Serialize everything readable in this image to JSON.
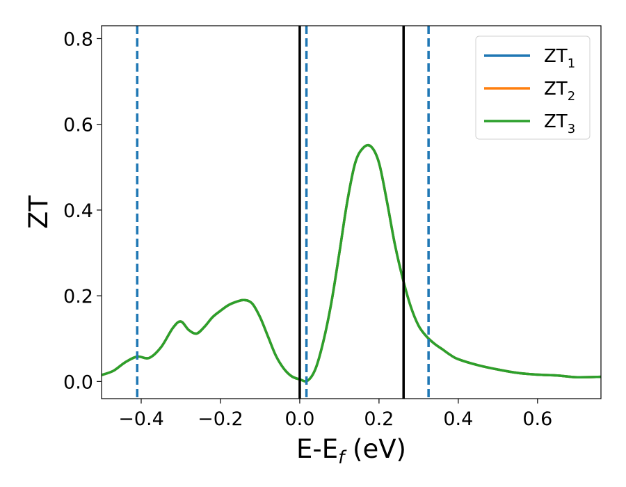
{
  "chart_data": {
    "type": "line",
    "xlabel": "E-E",
    "xlabel_sub": "f",
    "xlabel_unit": " (eV)",
    "ylabel": "ZT",
    "xlim": [
      -0.5,
      0.76
    ],
    "ylim": [
      -0.04,
      0.83
    ],
    "grid": false,
    "legend_position": "top-right",
    "xticks": [
      {
        "value": -0.4,
        "label": "−0.4"
      },
      {
        "value": -0.2,
        "label": "−0.2"
      },
      {
        "value": 0.0,
        "label": "0.0"
      },
      {
        "value": 0.2,
        "label": "0.2"
      },
      {
        "value": 0.4,
        "label": "0.4"
      },
      {
        "value": 0.6,
        "label": "0.6"
      }
    ],
    "yticks": [
      {
        "value": 0.0,
        "label": "0.0"
      },
      {
        "value": 0.2,
        "label": "0.2"
      },
      {
        "value": 0.4,
        "label": "0.4"
      },
      {
        "value": 0.6,
        "label": "0.6"
      },
      {
        "value": 0.8,
        "label": "0.8"
      }
    ],
    "x": [
      -0.5,
      -0.47,
      -0.44,
      -0.41,
      -0.38,
      -0.35,
      -0.32,
      -0.3,
      -0.28,
      -0.26,
      -0.24,
      -0.22,
      -0.2,
      -0.18,
      -0.16,
      -0.14,
      -0.12,
      -0.1,
      -0.08,
      -0.06,
      -0.04,
      -0.02,
      0.0,
      0.02,
      0.04,
      0.06,
      0.08,
      0.1,
      0.12,
      0.14,
      0.16,
      0.18,
      0.2,
      0.22,
      0.24,
      0.26,
      0.28,
      0.3,
      0.32,
      0.34,
      0.36,
      0.38,
      0.4,
      0.45,
      0.5,
      0.55,
      0.6,
      0.65,
      0.7,
      0.76
    ],
    "series": [
      {
        "name": "ZT",
        "name_sub": "1",
        "color": "#1f77b4",
        "values": [
          0.015,
          0.025,
          0.045,
          0.058,
          0.055,
          0.08,
          0.125,
          0.14,
          0.12,
          0.112,
          0.128,
          0.15,
          0.165,
          0.178,
          0.186,
          0.19,
          0.182,
          0.15,
          0.105,
          0.06,
          0.03,
          0.012,
          0.005,
          0.002,
          0.03,
          0.095,
          0.185,
          0.3,
          0.42,
          0.51,
          0.545,
          0.548,
          0.51,
          0.42,
          0.32,
          0.24,
          0.175,
          0.13,
          0.105,
          0.088,
          0.075,
          0.062,
          0.052,
          0.038,
          0.028,
          0.02,
          0.016,
          0.014,
          0.01,
          0.011
        ]
      },
      {
        "name": "ZT",
        "name_sub": "2",
        "color": "#ff7f0e",
        "values": [
          0.015,
          0.025,
          0.045,
          0.058,
          0.055,
          0.08,
          0.125,
          0.14,
          0.12,
          0.112,
          0.128,
          0.15,
          0.165,
          0.178,
          0.186,
          0.19,
          0.182,
          0.15,
          0.105,
          0.06,
          0.03,
          0.012,
          0.005,
          0.002,
          0.03,
          0.095,
          0.185,
          0.3,
          0.42,
          0.51,
          0.545,
          0.548,
          0.51,
          0.42,
          0.32,
          0.24,
          0.175,
          0.13,
          0.105,
          0.088,
          0.075,
          0.062,
          0.052,
          0.038,
          0.028,
          0.02,
          0.016,
          0.014,
          0.01,
          0.011
        ]
      },
      {
        "name": "ZT",
        "name_sub": "3",
        "color": "#2ca02c",
        "values": [
          0.015,
          0.025,
          0.045,
          0.058,
          0.055,
          0.08,
          0.125,
          0.14,
          0.12,
          0.112,
          0.128,
          0.15,
          0.165,
          0.178,
          0.186,
          0.19,
          0.182,
          0.15,
          0.105,
          0.06,
          0.03,
          0.012,
          0.005,
          0.002,
          0.03,
          0.095,
          0.185,
          0.3,
          0.42,
          0.51,
          0.545,
          0.548,
          0.51,
          0.42,
          0.32,
          0.24,
          0.175,
          0.13,
          0.105,
          0.088,
          0.075,
          0.062,
          0.052,
          0.038,
          0.028,
          0.02,
          0.016,
          0.014,
          0.01,
          0.011
        ]
      }
    ],
    "vlines": [
      {
        "x": -0.41,
        "style": "dashed",
        "color": "#1f77b4"
      },
      {
        "x": 0.017,
        "style": "dashed",
        "color": "#1f77b4"
      },
      {
        "x": 0.325,
        "style": "dashed",
        "color": "#1f77b4"
      },
      {
        "x": 0.0,
        "style": "solid",
        "color": "#000000"
      },
      {
        "x": 0.262,
        "style": "solid",
        "color": "#000000"
      }
    ]
  }
}
